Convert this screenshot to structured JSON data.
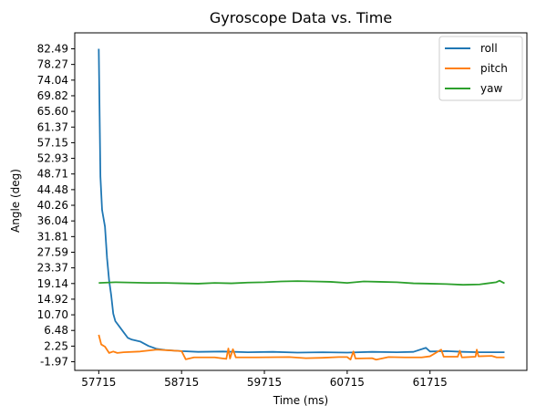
{
  "chart_data": {
    "type": "line",
    "title": "Gyroscope Data vs. Time",
    "xlabel": "Time (ms)",
    "ylabel": "Angle (deg)",
    "xlim": [
      57425,
      62885
    ],
    "ylim": [
      -4.3,
      86.8
    ],
    "x_ticks": [
      57715,
      58715,
      59715,
      60715,
      61715
    ],
    "x_tick_labels": [
      "57715",
      "58715",
      "59715",
      "60715",
      "61715"
    ],
    "y_ticks": [
      82.49,
      78.27,
      74.04,
      69.82,
      65.6,
      61.37,
      57.15,
      52.93,
      48.71,
      44.48,
      40.26,
      36.04,
      31.81,
      27.59,
      23.37,
      19.14,
      14.92,
      10.7,
      6.48,
      2.25,
      -1.97
    ],
    "y_tick_labels": [
      "82.49",
      "78.27",
      "74.04",
      "69.82",
      "65.60",
      "61.37",
      "57.15",
      "52.93",
      "48.71",
      "44.48",
      "40.26",
      "36.04",
      "31.81",
      "27.59",
      "23.37",
      "19.14",
      "14.92",
      "10.70",
      "6.48",
      "2.25",
      "-1.97"
    ],
    "legend_position": "top-right",
    "grid": false,
    "series": [
      {
        "name": "roll",
        "color": "#1f77b4",
        "points": [
          [
            57715,
            82.5
          ],
          [
            57735,
            48
          ],
          [
            57755,
            39
          ],
          [
            57790,
            34.5
          ],
          [
            57815,
            26
          ],
          [
            57840,
            20
          ],
          [
            57865,
            16
          ],
          [
            57890,
            11
          ],
          [
            57915,
            9
          ],
          [
            57965,
            7.5
          ],
          [
            58015,
            6
          ],
          [
            58065,
            4.5
          ],
          [
            58115,
            4
          ],
          [
            58215,
            3.5
          ],
          [
            58315,
            2.3
          ],
          [
            58415,
            1.5
          ],
          [
            58515,
            1.2
          ],
          [
            58715,
            0.9
          ],
          [
            58915,
            0.7
          ],
          [
            59215,
            0.8
          ],
          [
            59515,
            0.6
          ],
          [
            59815,
            0.7
          ],
          [
            60115,
            0.5
          ],
          [
            60415,
            0.6
          ],
          [
            60715,
            0.5
          ],
          [
            61015,
            0.7
          ],
          [
            61315,
            0.6
          ],
          [
            61515,
            0.7
          ],
          [
            61665,
            1.8
          ],
          [
            61715,
            0.8
          ],
          [
            61915,
            0.9
          ],
          [
            62115,
            0.7
          ],
          [
            62315,
            0.6
          ],
          [
            62515,
            0.6
          ],
          [
            62615,
            0.6
          ]
        ]
      },
      {
        "name": "pitch",
        "color": "#ff7f0e",
        "points": [
          [
            57715,
            5.3
          ],
          [
            57745,
            2.7
          ],
          [
            57790,
            2.1
          ],
          [
            57840,
            0.4
          ],
          [
            57890,
            0.8
          ],
          [
            57940,
            0.4
          ],
          [
            58015,
            0.6
          ],
          [
            58215,
            0.8
          ],
          [
            58415,
            1.3
          ],
          [
            58715,
            0.9
          ],
          [
            58765,
            -1.3
          ],
          [
            58865,
            -0.8
          ],
          [
            59115,
            -0.8
          ],
          [
            59255,
            -1.2
          ],
          [
            59280,
            1.6
          ],
          [
            59300,
            -1.1
          ],
          [
            59335,
            1.4
          ],
          [
            59370,
            -0.8
          ],
          [
            59615,
            -0.8
          ],
          [
            60015,
            -0.7
          ],
          [
            60215,
            -1.0
          ],
          [
            60415,
            -0.9
          ],
          [
            60615,
            -0.7
          ],
          [
            60715,
            -0.7
          ],
          [
            60755,
            -1.4
          ],
          [
            60790,
            0.8
          ],
          [
            60815,
            -1.1
          ],
          [
            61015,
            -1.0
          ],
          [
            61065,
            -1.4
          ],
          [
            61215,
            -0.7
          ],
          [
            61415,
            -0.8
          ],
          [
            61615,
            -0.8
          ],
          [
            61715,
            -0.5
          ],
          [
            61850,
            1.3
          ],
          [
            61880,
            -0.6
          ],
          [
            62050,
            -0.6
          ],
          [
            62075,
            1.0
          ],
          [
            62100,
            -0.8
          ],
          [
            62265,
            -0.6
          ],
          [
            62280,
            1.3
          ],
          [
            62300,
            -0.5
          ],
          [
            62460,
            -0.4
          ],
          [
            62520,
            -0.8
          ],
          [
            62615,
            -0.8
          ]
        ]
      },
      {
        "name": "yaw",
        "color": "#2ca02c",
        "points": [
          [
            57715,
            19.3
          ],
          [
            57915,
            19.5
          ],
          [
            58115,
            19.4
          ],
          [
            58315,
            19.3
          ],
          [
            58515,
            19.3
          ],
          [
            58715,
            19.2
          ],
          [
            58915,
            19.1
          ],
          [
            59115,
            19.3
          ],
          [
            59315,
            19.2
          ],
          [
            59515,
            19.4
          ],
          [
            59715,
            19.5
          ],
          [
            59915,
            19.7
          ],
          [
            60115,
            19.8
          ],
          [
            60315,
            19.7
          ],
          [
            60515,
            19.6
          ],
          [
            60715,
            19.3
          ],
          [
            60915,
            19.7
          ],
          [
            61115,
            19.6
          ],
          [
            61315,
            19.5
          ],
          [
            61515,
            19.2
          ],
          [
            61715,
            19.1
          ],
          [
            61915,
            19.0
          ],
          [
            62115,
            18.8
          ],
          [
            62315,
            18.9
          ],
          [
            62415,
            19.2
          ],
          [
            62515,
            19.5
          ],
          [
            62555,
            19.9
          ],
          [
            62615,
            19.2
          ]
        ]
      }
    ]
  }
}
